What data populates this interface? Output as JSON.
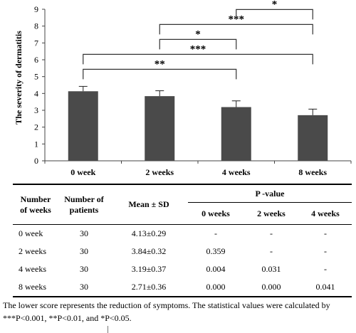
{
  "chart_data": {
    "type": "bar",
    "ylabel": "The severity of dermatitis",
    "xlabel": "",
    "categories": [
      "0 week",
      "2 weeks",
      "4 weeks",
      "8 weeks"
    ],
    "values": [
      4.13,
      3.84,
      3.19,
      2.71
    ],
    "errors": [
      0.29,
      0.32,
      0.37,
      0.36
    ],
    "ylim": [
      0,
      9
    ],
    "yticks": [
      "0",
      "1",
      "2",
      "3",
      "4",
      "5",
      "6",
      "7",
      "8",
      "9"
    ],
    "grid": false,
    "bar_color": "#4a4a4a",
    "significance": [
      {
        "from": 0,
        "to": 2,
        "label": "**"
      },
      {
        "from": 0,
        "to": 3,
        "label": "***"
      },
      {
        "from": 1,
        "to": 2,
        "label": "*"
      },
      {
        "from": 1,
        "to": 3,
        "label": "***"
      },
      {
        "from": 2,
        "to": 3,
        "label": "*"
      }
    ]
  },
  "table": {
    "header": {
      "number_of_weeks_line1": "Number",
      "number_of_weeks_line2": "of  weeks",
      "number_of_patients_line1": "Number of",
      "number_of_patients_line2": "patients",
      "mean_sd": "Mean ± SD",
      "p_value": "P -value",
      "p_cols": [
        "0 weeks",
        "2 weeks",
        "4 weeks"
      ]
    },
    "rows": [
      {
        "weeks": "0  week",
        "patients": "30",
        "mean_sd": "4.13±0.29",
        "p": [
          "-",
          "-",
          "-"
        ]
      },
      {
        "weeks": "2 weeks",
        "patients": "30",
        "mean_sd": "3.84±0.32",
        "p": [
          "0.359",
          "-",
          "-"
        ]
      },
      {
        "weeks": "4 weeks",
        "patients": "30",
        "mean_sd": "3.19±0.37",
        "p": [
          "0.004",
          "0.031",
          "-"
        ]
      },
      {
        "weeks": "8 weeks",
        "patients": "30",
        "mean_sd": "2.71±0.36",
        "p": [
          "0.000",
          "0.000",
          "0.041"
        ]
      }
    ]
  },
  "footnote": {
    "line1": "The lower score represents the reduction of symptoms. The statistical values were calculated by",
    "line2": "***P<0.001, **P<0.01, and *P<0.05."
  }
}
